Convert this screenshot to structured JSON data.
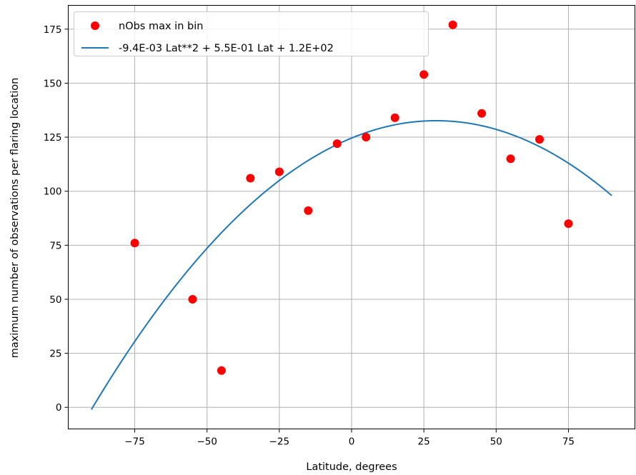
{
  "chart_data": {
    "type": "scatter",
    "xlabel": "Latitude, degrees",
    "ylabel": "maximum number of observations per flaring location",
    "xlim": [
      -98,
      98
    ],
    "ylim": [
      -10,
      186
    ],
    "xticks": [
      -75,
      -50,
      -25,
      0,
      25,
      50,
      75
    ],
    "xtick_labels": [
      "−75",
      "−50",
      "−25",
      "0",
      "25",
      "50",
      "75"
    ],
    "yticks": [
      0,
      25,
      50,
      75,
      100,
      125,
      150,
      175
    ],
    "ytick_labels": [
      "0",
      "25",
      "50",
      "75",
      "100",
      "125",
      "150",
      "175"
    ],
    "grid": true,
    "legend_position": "top-left",
    "series": [
      {
        "name": "nObs max in bin",
        "type": "scatter",
        "color": "#ff0000",
        "x": [
          -75,
          -55,
          -45,
          -35,
          -25,
          -15,
          -5,
          5,
          15,
          25,
          35,
          45,
          55,
          65,
          75
        ],
        "y": [
          76,
          50,
          17,
          106,
          109,
          91,
          122,
          125,
          134,
          154,
          177,
          136,
          115,
          124,
          85
        ]
      },
      {
        "name": "-9.4E-03 Lat**2 + 5.5E-01 Lat + 1.2E+02",
        "type": "line",
        "color": "#1f77b4",
        "equation": {
          "a": -0.0094,
          "b": 0.55,
          "c": 124.6
        },
        "x_range": [
          -90,
          90
        ]
      }
    ]
  }
}
